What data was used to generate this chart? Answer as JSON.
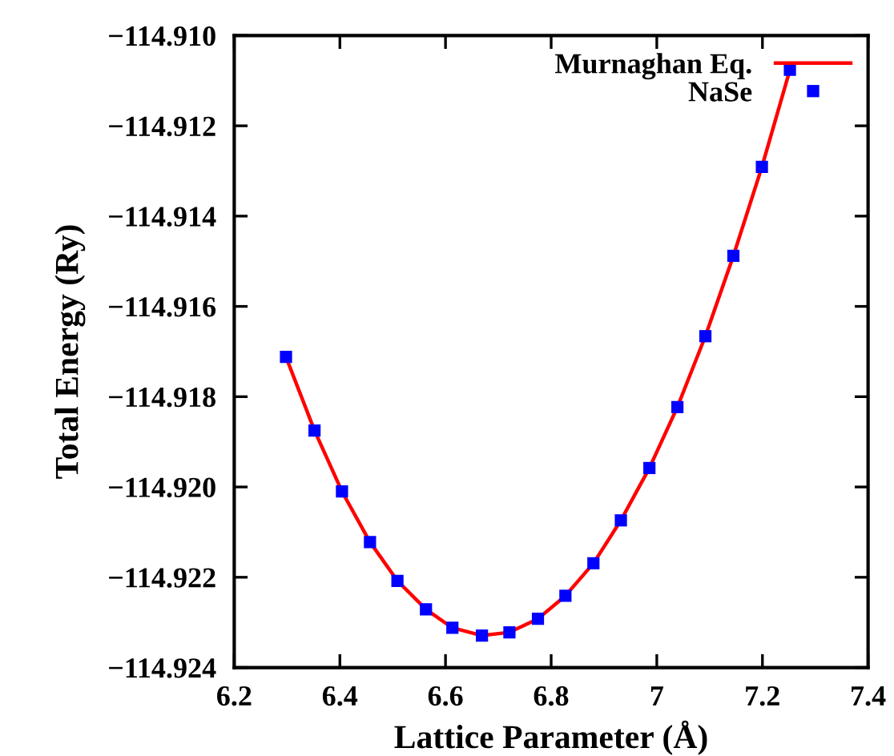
{
  "chart_data": {
    "type": "scatter",
    "xlabel": "Lattice Parameter (Å)",
    "ylabel": "Total Energy (Ry)",
    "xlim": [
      6.2,
      7.4
    ],
    "xticks": [
      6.2,
      6.4,
      6.6,
      6.8,
      {
        "value": 7.0,
        "label": "7"
      },
      7.2,
      7.4
    ],
    "ylim": [
      -114.924,
      -114.91
    ],
    "yticks": [
      {
        "value": -114.924,
        "label": "−114.924"
      },
      {
        "value": -114.922,
        "label": "−114.922"
      },
      {
        "value": -114.92,
        "label": "−114.920"
      },
      {
        "value": -114.918,
        "label": "−114.918"
      },
      {
        "value": -114.916,
        "label": "−114.916"
      },
      {
        "value": -114.914,
        "label": "−114.914"
      },
      {
        "value": -114.912,
        "label": "−114.912"
      },
      {
        "value": -114.91,
        "label": "−114.910"
      }
    ],
    "legend": "top right",
    "grid": false,
    "series": [
      {
        "name": "Murnaghan Eq.",
        "type": "line",
        "color": "#ff0000",
        "marker": "none",
        "line_style": "solid",
        "x": [
          6.298,
          6.352,
          6.404,
          6.457,
          6.509,
          6.563,
          6.613,
          6.669,
          6.721,
          6.775,
          6.827,
          6.88,
          6.932,
          6.986,
          7.039,
          7.092,
          7.145,
          7.199,
          7.252
        ],
        "values": [
          -114.91712,
          -114.91875,
          -114.9201,
          -114.92122,
          -114.92208,
          -114.92271,
          -114.92312,
          -114.92329,
          -114.92322,
          -114.92292,
          -114.92241,
          -114.92169,
          -114.92074,
          -114.91958,
          -114.91823,
          -114.91666,
          -114.91488,
          -114.91291,
          -114.91076
        ]
      },
      {
        "name": "NaSe",
        "color": "#0000ff",
        "marker": "square",
        "x": [
          6.298,
          6.352,
          6.404,
          6.457,
          6.509,
          6.563,
          6.613,
          6.669,
          6.721,
          6.775,
          6.827,
          6.88,
          6.932,
          6.986,
          7.039,
          7.092,
          7.145,
          7.199,
          7.252
        ],
        "values": [
          -114.91712,
          -114.91875,
          -114.9201,
          -114.92122,
          -114.92208,
          -114.92271,
          -114.92312,
          -114.92329,
          -114.92322,
          -114.92292,
          -114.92241,
          -114.92169,
          -114.92074,
          -114.91958,
          -114.91823,
          -114.91666,
          -114.91488,
          -114.91291,
          -114.91076
        ]
      }
    ]
  }
}
